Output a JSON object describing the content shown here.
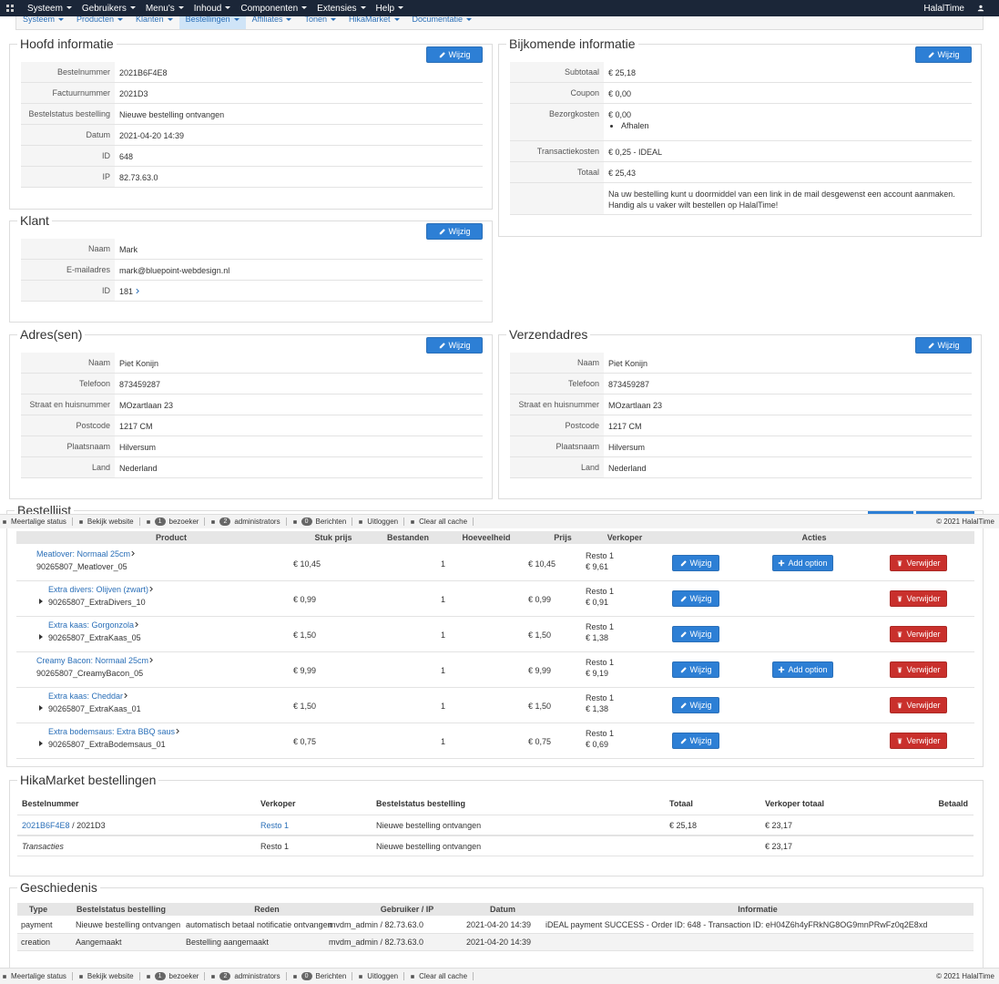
{
  "topbar": {
    "menus": [
      "Systeem",
      "Gebruikers",
      "Menu's",
      "Inhoud",
      "Componenten",
      "Extensies",
      "Help"
    ],
    "site": "HalalTime"
  },
  "submenu": {
    "items": [
      "Systeem",
      "Producten",
      "Klanten",
      "Bestellingen",
      "Affiliates",
      "Tonen",
      "HikaMarket",
      "Documentatie"
    ],
    "active": 3
  },
  "buttons": {
    "edit": "Wijzig",
    "add_option": "Add option",
    "delete": "Verwijder"
  },
  "main_info": {
    "title": "Hoofd informatie",
    "rows": [
      {
        "label": "Bestelnummer",
        "value": "2021B6F4E8"
      },
      {
        "label": "Factuurnummer",
        "value": "2021D3"
      },
      {
        "label": "Bestelstatus bestelling",
        "value": "Nieuwe bestelling ontvangen"
      },
      {
        "label": "Datum",
        "value": "2021-04-20 14:39"
      },
      {
        "label": "ID",
        "value": "648"
      },
      {
        "label": "IP",
        "value": "82.73.63.0"
      }
    ]
  },
  "additional_info": {
    "title": "Bijkomende informatie",
    "rows": [
      {
        "label": "Subtotaal",
        "value": "€ 25,18"
      },
      {
        "label": "Coupon",
        "value": "€ 0,00"
      },
      {
        "label": "Bezorgkosten",
        "value": "€ 0,00",
        "list": [
          "Afhalen"
        ]
      },
      {
        "label": "Transactiekosten",
        "value": "€ 0,25 - IDEAL"
      },
      {
        "label": "Totaal",
        "value": "€ 25,43"
      }
    ],
    "note": "Na uw bestelling kunt u doormiddel van een link in de mail desgewenst een account aanmaken. Handig als u vaker wilt bestellen op HalalTime!"
  },
  "customer": {
    "title": "Klant",
    "rows": [
      {
        "label": "Naam",
        "value": "Mark"
      },
      {
        "label": "E-mailadres",
        "value": "mark@bluepoint-webdesign.nl"
      },
      {
        "label": "ID",
        "value": "181",
        "link": true
      }
    ]
  },
  "billing_address": {
    "title": "Adres(sen)",
    "rows": [
      {
        "label": "Naam",
        "value": "Piet Konijn"
      },
      {
        "label": "Telefoon",
        "value": "873459287"
      },
      {
        "label": "Straat en huisnummer",
        "value": "MOzartlaan 23"
      },
      {
        "label": "Postcode",
        "value": "1217 CM"
      },
      {
        "label": "Plaatsnaam",
        "value": "Hilversum"
      },
      {
        "label": "Land",
        "value": "Nederland"
      }
    ]
  },
  "shipping_address": {
    "title": "Verzendadres",
    "rows": [
      {
        "label": "Naam",
        "value": "Piet Konijn"
      },
      {
        "label": "Telefoon",
        "value": "873459287"
      },
      {
        "label": "Straat en huisnummer",
        "value": "MOzartlaan 23"
      },
      {
        "label": "Postcode",
        "value": "1217 CM"
      },
      {
        "label": "Plaatsnaam",
        "value": "Hilversum"
      },
      {
        "label": "Land",
        "value": "Nederland"
      }
    ]
  },
  "order_list": {
    "title": "Bestellijst",
    "columns": [
      "Product",
      "Stuk prijs",
      "Bestanden",
      "Hoeveelheid",
      "Prijs",
      "Verkoper",
      "Acties"
    ],
    "rows": [
      {
        "name": "Meatlover: Normaal 25cm",
        "code": "90265807_Meatlover_05",
        "price": "€ 10,45",
        "quantity": 1,
        "total": "€ 10,45",
        "vendor": "Resto 1",
        "vendor_price": "€ 9,61",
        "sub": false,
        "option": true
      },
      {
        "name": "Extra divers: Olijven (zwart)",
        "code": "90265807_ExtraDivers_10",
        "price": "€ 0,99",
        "quantity": 1,
        "total": "€ 0,99",
        "vendor": "Resto 1",
        "vendor_price": "€ 0,91",
        "sub": true,
        "option": false
      },
      {
        "name": "Extra kaas: Gorgonzola",
        "code": "90265807_ExtraKaas_05",
        "price": "€ 1,50",
        "quantity": 1,
        "total": "€ 1,50",
        "vendor": "Resto 1",
        "vendor_price": "€ 1,38",
        "sub": true,
        "option": false
      },
      {
        "name": "Creamy Bacon: Normaal 25cm",
        "code": "90265807_CreamyBacon_05",
        "price": "€ 9,99",
        "quantity": 1,
        "total": "€ 9,99",
        "vendor": "Resto 1",
        "vendor_price": "€ 9,19",
        "sub": false,
        "option": true
      },
      {
        "name": "Extra kaas: Cheddar",
        "code": "90265807_ExtraKaas_01",
        "price": "€ 1,50",
        "quantity": 1,
        "total": "€ 1,50",
        "vendor": "Resto 1",
        "vendor_price": "€ 1,38",
        "sub": true,
        "option": false
      },
      {
        "name": "Extra bodemsaus: Extra BBQ saus",
        "code": "90265807_ExtraBodemsaus_01",
        "price": "€ 0,75",
        "quantity": 1,
        "total": "€ 0,75",
        "vendor": "Resto 1",
        "vendor_price": "€ 0,69",
        "sub": true,
        "option": false
      }
    ]
  },
  "hikamarket": {
    "title": "HikaMarket bestellingen",
    "columns": [
      "Bestelnummer",
      "Verkoper",
      "Bestelstatus bestelling",
      "Totaal",
      "Verkoper totaal",
      "Betaald"
    ],
    "rows": [
      {
        "order": "2021B6F4E8",
        "invoice": "/ 2021D3",
        "vendor": "Resto 1",
        "status": "Nieuwe bestelling ontvangen",
        "total": "€ 25,18",
        "vendor_total": "€ 23,17"
      },
      {
        "order": "Transacties",
        "invoice": null,
        "vendor": "Resto 1",
        "status": "Nieuwe bestelling ontvangen",
        "total": null,
        "vendor_total": "€ 23,17"
      }
    ]
  },
  "history": {
    "title": "Geschiedenis",
    "columns": [
      "Type",
      "Bestelstatus bestelling",
      "Reden",
      "Gebruiker / IP",
      "Datum",
      "Informatie"
    ],
    "rows": [
      [
        "payment",
        "Nieuwe bestelling ontvangen",
        "automatisch betaal notificatie ontvangen",
        "mvdm_admin / 82.73.63.0",
        "2021-04-20 14:39",
        "iDEAL payment SUCCESS - Order ID: 648 - Transaction ID: eH04Z6h4yFRkNG8OG9mnPRwFz0q2E8xd"
      ],
      [
        "creation",
        "Aangemaakt",
        "Bestelling aangemaakt",
        "mvdm_admin / 82.73.63.0",
        "2021-04-20 14:39",
        null
      ]
    ]
  },
  "statusbar": {
    "items": [
      {
        "count": null,
        "label": "Meertalige status"
      },
      {
        "count": null,
        "label": "Bekijk website"
      },
      {
        "count": 1,
        "label": "bezoeker"
      },
      {
        "count": 2,
        "label": "administrators"
      },
      {
        "count": 0,
        "label": "Berichten"
      },
      {
        "count": null,
        "label": "Uitloggen"
      },
      {
        "count": null,
        "label": "Clear all cache"
      }
    ],
    "copyright": "© 2021 HalalTime"
  }
}
